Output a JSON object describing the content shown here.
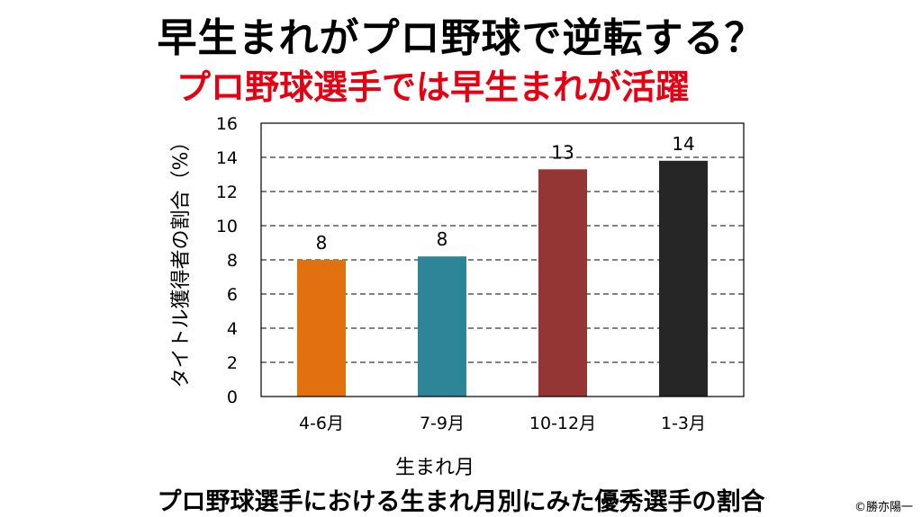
{
  "header": {
    "title": "早生まれがプロ野球で逆転する？",
    "subtitle": "プロ野球選手では早生まれが活躍"
  },
  "footer": {
    "caption": "プロ野球選手における生まれ月別にみた優秀選手の割合",
    "copyright": "©勝亦陽一"
  },
  "chart_data": {
    "type": "bar",
    "categories": [
      "4-6月",
      "7-9月",
      "10-12月",
      "1-3月"
    ],
    "values": [
      8.0,
      8.2,
      13.3,
      13.8
    ],
    "data_labels": [
      "8",
      "8",
      "13",
      "14"
    ],
    "colors": [
      "#e2700e",
      "#2e8597",
      "#943634",
      "#262626"
    ],
    "xlabel": "生まれ月",
    "ylabel": "タイトル獲得者の割合（%）",
    "ylim": [
      0,
      16
    ],
    "yticks": [
      0,
      2,
      4,
      6,
      8,
      10,
      12,
      14,
      16
    ],
    "grid": "horizontal dashed",
    "legend": "none"
  }
}
